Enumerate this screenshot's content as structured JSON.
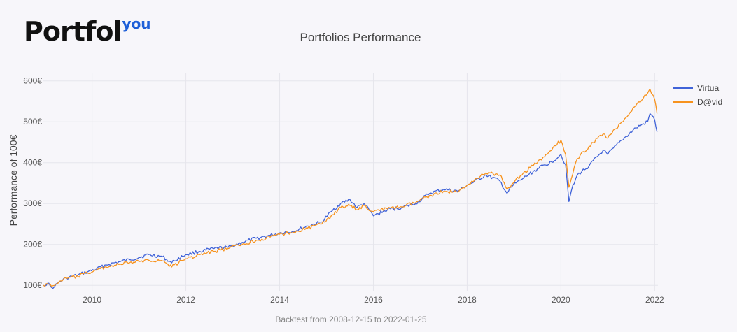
{
  "logo": {
    "main": "Portfol",
    "sup": "you"
  },
  "footer": "Backtest from 2008-12-15 to 2022-01-25",
  "chart_data": {
    "type": "line",
    "title": "Portfolios Performance",
    "xlabel": "",
    "ylabel": "Performance of 100€",
    "xlim": [
      2008.96,
      2022.07
    ],
    "ylim": [
      85,
      620
    ],
    "xticks": [
      2010,
      2012,
      2014,
      2016,
      2018,
      2020,
      2022
    ],
    "yticks": [
      100,
      200,
      300,
      400,
      500,
      600
    ],
    "ytick_labels": [
      "100€",
      "200€",
      "300€",
      "400€",
      "500€",
      "600€"
    ],
    "legend_position": "top-right",
    "series": [
      {
        "name": "Virtua",
        "color": "#4063d8",
        "x": [
          2008.96,
          2009.05,
          2009.13,
          2009.2,
          2009.3,
          2009.45,
          2009.7,
          2009.9,
          2010.1,
          2010.3,
          2010.6,
          2010.8,
          2011.0,
          2011.2,
          2011.5,
          2011.7,
          2011.75,
          2012.0,
          2012.3,
          2012.6,
          2012.9,
          2013.2,
          2013.5,
          2013.8,
          2014.0,
          2014.3,
          2014.6,
          2014.9,
          2015.1,
          2015.3,
          2015.5,
          2015.65,
          2015.8,
          2016.0,
          2016.1,
          2016.3,
          2016.6,
          2016.9,
          2017.2,
          2017.5,
          2017.8,
          2018.0,
          2018.1,
          2018.4,
          2018.7,
          2018.85,
          2018.98,
          2019.2,
          2019.5,
          2019.8,
          2020.0,
          2020.1,
          2020.17,
          2020.22,
          2020.35,
          2020.6,
          2020.9,
          2021.0,
          2021.3,
          2021.6,
          2021.85,
          2021.9,
          2022.0,
          2022.05
        ],
        "values": [
          100,
          105,
          95,
          97,
          108,
          118,
          125,
          133,
          140,
          150,
          158,
          163,
          168,
          175,
          170,
          155,
          160,
          175,
          183,
          190,
          193,
          205,
          215,
          222,
          228,
          232,
          245,
          255,
          280,
          300,
          310,
          290,
          300,
          270,
          275,
          285,
          290,
          300,
          325,
          335,
          330,
          345,
          350,
          370,
          355,
          325,
          345,
          362,
          385,
          402,
          420,
          395,
          305,
          330,
          370,
          392,
          430,
          420,
          455,
          485,
          500,
          520,
          505,
          475
        ]
      },
      {
        "name": "D@vid",
        "color": "#f7931e",
        "x": [
          2008.96,
          2009.05,
          2009.13,
          2009.2,
          2009.3,
          2009.45,
          2009.7,
          2009.9,
          2010.1,
          2010.3,
          2010.6,
          2010.8,
          2011.0,
          2011.2,
          2011.5,
          2011.7,
          2011.75,
          2012.0,
          2012.3,
          2012.6,
          2012.9,
          2013.2,
          2013.5,
          2013.8,
          2014.0,
          2014.3,
          2014.6,
          2014.9,
          2015.1,
          2015.3,
          2015.5,
          2015.65,
          2015.8,
          2016.0,
          2016.1,
          2016.3,
          2016.6,
          2016.9,
          2017.2,
          2017.5,
          2017.8,
          2018.0,
          2018.1,
          2018.4,
          2018.7,
          2018.85,
          2018.98,
          2019.2,
          2019.5,
          2019.8,
          2020.0,
          2020.1,
          2020.17,
          2020.22,
          2020.35,
          2020.6,
          2020.9,
          2021.0,
          2021.3,
          2021.6,
          2021.85,
          2021.9,
          2022.0,
          2022.05
        ],
        "values": [
          100,
          104,
          98,
          100,
          110,
          117,
          122,
          130,
          137,
          145,
          152,
          155,
          158,
          162,
          160,
          145,
          150,
          165,
          175,
          183,
          190,
          200,
          210,
          218,
          225,
          230,
          240,
          250,
          270,
          290,
          295,
          285,
          295,
          280,
          285,
          287,
          292,
          302,
          320,
          330,
          328,
          345,
          355,
          375,
          370,
          335,
          350,
          375,
          400,
          430,
          455,
          420,
          340,
          360,
          410,
          440,
          470,
          460,
          500,
          540,
          570,
          580,
          555,
          520
        ]
      }
    ]
  }
}
